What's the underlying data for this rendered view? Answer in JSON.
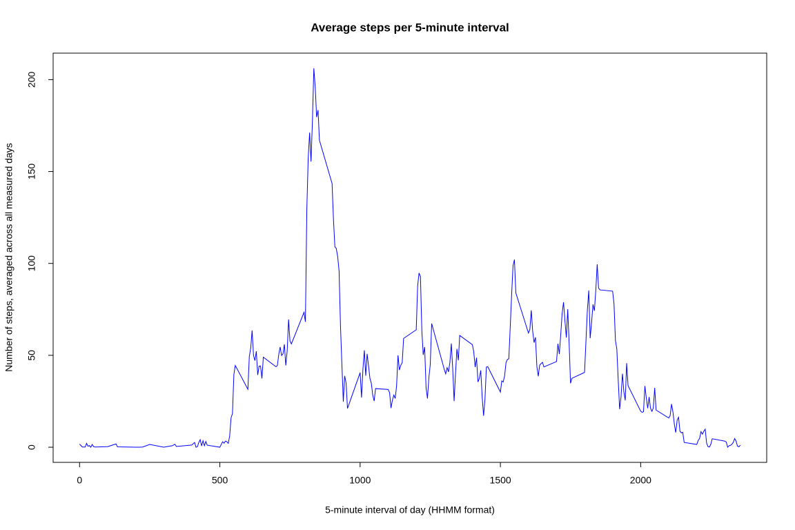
{
  "chart_data": {
    "type": "line",
    "title": "Average steps per 5-minute interval",
    "x_label": "5-minute interval of day (HHMM format)",
    "y_label": "Number of steps, averaged across all measured days",
    "color": "#0000ff",
    "xlim": [
      -94.2,
      2449.2
    ],
    "ylim": [
      -8.247,
      214.417
    ],
    "xticks": [
      0,
      500,
      1000,
      1500,
      2000
    ],
    "yticks": [
      0,
      50,
      100,
      150,
      200
    ],
    "x": [
      0,
      10,
      20,
      25,
      30,
      35,
      40,
      45,
      50,
      55,
      100,
      130,
      135,
      200,
      215,
      225,
      250,
      300,
      330,
      340,
      345,
      400,
      410,
      415,
      420,
      425,
      430,
      435,
      440,
      445,
      450,
      455,
      500,
      510,
      515,
      520,
      525,
      530,
      535,
      540,
      545,
      550,
      555,
      600,
      605,
      610,
      615,
      620,
      625,
      630,
      635,
      640,
      645,
      650,
      655,
      700,
      705,
      710,
      715,
      720,
      725,
      730,
      735,
      740,
      745,
      750,
      755,
      800,
      805,
      810,
      815,
      820,
      825,
      830,
      835,
      840,
      845,
      850,
      855,
      900,
      905,
      910,
      915,
      920,
      925,
      930,
      935,
      940,
      945,
      950,
      955,
      1000,
      1005,
      1010,
      1015,
      1020,
      1025,
      1030,
      1035,
      1040,
      1045,
      1050,
      1055,
      1100,
      1105,
      1110,
      1115,
      1120,
      1125,
      1130,
      1135,
      1140,
      1145,
      1150,
      1155,
      1200,
      1205,
      1210,
      1215,
      1220,
      1225,
      1230,
      1235,
      1240,
      1245,
      1250,
      1255,
      1300,
      1305,
      1310,
      1315,
      1320,
      1325,
      1330,
      1335,
      1340,
      1345,
      1350,
      1355,
      1400,
      1405,
      1410,
      1415,
      1420,
      1425,
      1430,
      1435,
      1440,
      1445,
      1450,
      1455,
      1500,
      1505,
      1510,
      1515,
      1520,
      1525,
      1530,
      1535,
      1540,
      1545,
      1550,
      1555,
      1600,
      1605,
      1610,
      1615,
      1620,
      1625,
      1630,
      1635,
      1640,
      1645,
      1650,
      1655,
      1700,
      1705,
      1710,
      1715,
      1720,
      1725,
      1730,
      1735,
      1740,
      1745,
      1750,
      1755,
      1800,
      1805,
      1810,
      1815,
      1820,
      1825,
      1830,
      1835,
      1840,
      1845,
      1850,
      1855,
      1900,
      1905,
      1910,
      1915,
      1920,
      1925,
      1930,
      1935,
      1940,
      1945,
      1950,
      1955,
      2000,
      2005,
      2010,
      2015,
      2020,
      2025,
      2030,
      2035,
      2040,
      2045,
      2050,
      2055,
      2100,
      2105,
      2110,
      2115,
      2120,
      2125,
      2130,
      2135,
      2140,
      2145,
      2150,
      2155,
      2200,
      2205,
      2210,
      2215,
      2220,
      2225,
      2230,
      2235,
      2240,
      2245,
      2250,
      2255,
      2300,
      2305,
      2310,
      2315,
      2320,
      2325,
      2330,
      2335,
      2340,
      2345,
      2350,
      2355
    ],
    "values": [
      1.7,
      0.1,
      0.1,
      2.1,
      0.5,
      0.9,
      0,
      1.5,
      0.3,
      0.1,
      0.3,
      1.8,
      0.2,
      0,
      0,
      0.1,
      1.5,
      0,
      0.8,
      1.6,
      0.4,
      1.2,
      2.6,
      0,
      0.3,
      2.6,
      4.1,
      0.7,
      3.5,
      0.8,
      3.1,
      1.1,
      0,
      3,
      2.2,
      3.3,
      3,
      2.1,
      6.1,
      16,
      18.3,
      39.5,
      44.5,
      31.5,
      49.3,
      53.8,
      63.5,
      50,
      47.1,
      52.2,
      39.3,
      44.1,
      44.2,
      37.4,
      49,
      43.8,
      44.4,
      50.5,
      54.5,
      49.9,
      50.8,
      56,
      44.5,
      52.3,
      69.5,
      57.8,
      56.2,
      73.4,
      68.2,
      129.4,
      157.5,
      171.2,
      155.4,
      177.3,
      206.2,
      195.9,
      179.6,
      183.4,
      167,
      143.5,
      124,
      109.1,
      108.1,
      103.7,
      95.9,
      66.2,
      45.2,
      24.8,
      38.8,
      34.98,
      21.1,
      40.6,
      27,
      42.4,
      52.7,
      38.9,
      50.8,
      44.3,
      37.4,
      34.7,
      28.3,
      25.1,
      31.9,
      31.4,
      29.7,
      21.3,
      25.5,
      28.4,
      26.5,
      33.4,
      49.98,
      42,
      44.6,
      46,
      59.2,
      63.9,
      87.7,
      94.8,
      92.8,
      63.4,
      50.2,
      54.5,
      32.4,
      26.5,
      37.7,
      45,
      67.3,
      42.3,
      39.9,
      43.3,
      40.98,
      46.2,
      56.4,
      42.8,
      25.1,
      39.97,
      53.5,
      47.3,
      60.8,
      55.8,
      51.96,
      43.6,
      48.7,
      35.5,
      37.5,
      41.8,
      27.5,
      17.1,
      26.1,
      43.6,
      43.8,
      30,
      36.1,
      35.5,
      38.8,
      46,
      47.8,
      48.1,
      65.3,
      82.9,
      98.7,
      102.1,
      83.96,
      62.1,
      64.1,
      74.5,
      63.2,
      56.9,
      59.8,
      43.9,
      38.6,
      44.7,
      45.5,
      46.2,
      43.7,
      46.6,
      56.3,
      50.7,
      61.2,
      72.7,
      78.9,
      68.9,
      59.7,
      75.1,
      56.5,
      34.8,
      37.5,
      40.7,
      58,
      74.7,
      85.3,
      59.3,
      67.8,
      77.7,
      74.2,
      85.3,
      99.5,
      86.6,
      85.6,
      84.9,
      77.8,
      58,
      53.4,
      36.3,
      20.7,
      27.4,
      40,
      30.2,
      25.5,
      45.7,
      33.5,
      19.6,
      19,
      19.3,
      33.3,
      26.8,
      21.2,
      27.3,
      21.3,
      19.5,
      21.3,
      32.3,
      20.2,
      15.9,
      17.2,
      23.5,
      19.2,
      12.5,
      8,
      14.7,
      16.3,
      8.7,
      7.8,
      8.1,
      2.6,
      1.5,
      3.7,
      4.8,
      8.5,
      7.1,
      8.7,
      9.8,
      2.2,
      0.3,
      0.1,
      1.6,
      4.6,
      3.3,
      2.8,
      0,
      0.8,
      1,
      1.6,
      2.6,
      4.7,
      3.3,
      0.6,
      0.2,
      1.1
    ]
  }
}
